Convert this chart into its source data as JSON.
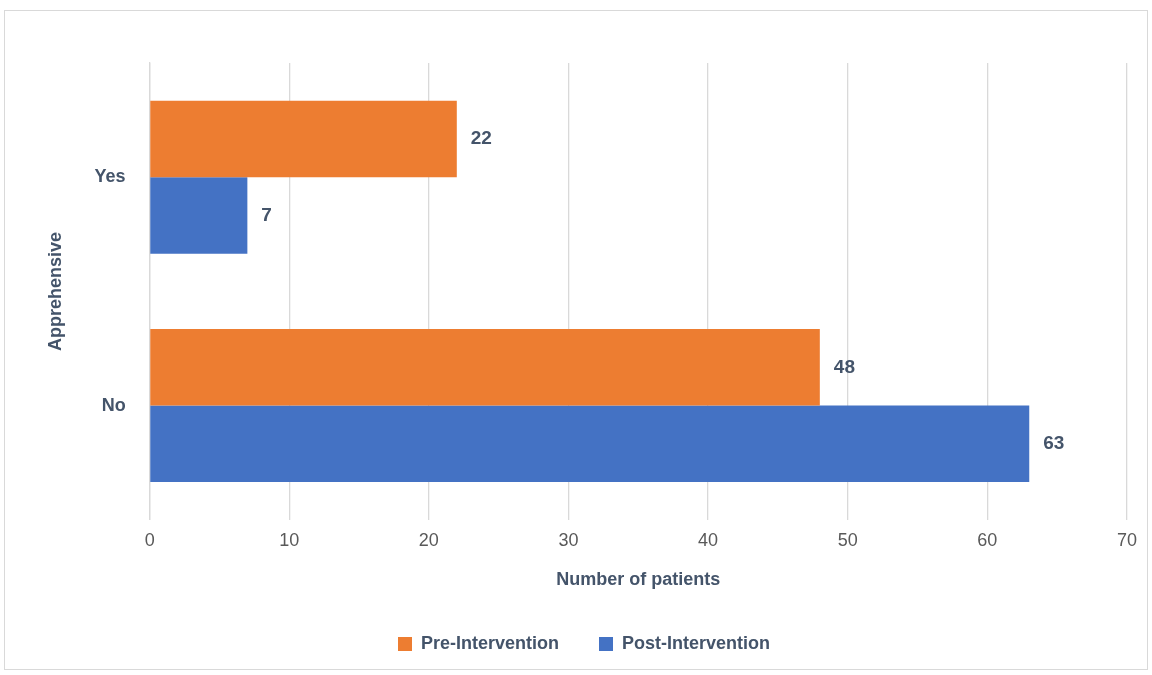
{
  "chart_data": {
    "type": "bar",
    "orientation": "horizontal",
    "xlabel": "Number of patients",
    "ylabel": "Apprehensive",
    "categories": [
      "Yes",
      "No"
    ],
    "series": [
      {
        "name": "Pre-Intervention",
        "color": "#ed7d31",
        "values": [
          22,
          48
        ]
      },
      {
        "name": "Post-Intervention",
        "color": "#4472c4",
        "values": [
          7,
          63
        ]
      }
    ],
    "xlim": [
      0,
      70
    ],
    "xticks": [
      0,
      10,
      20,
      30,
      40,
      50,
      60,
      70
    ],
    "grid": "x",
    "legend": "bottom",
    "data_labels": true
  }
}
